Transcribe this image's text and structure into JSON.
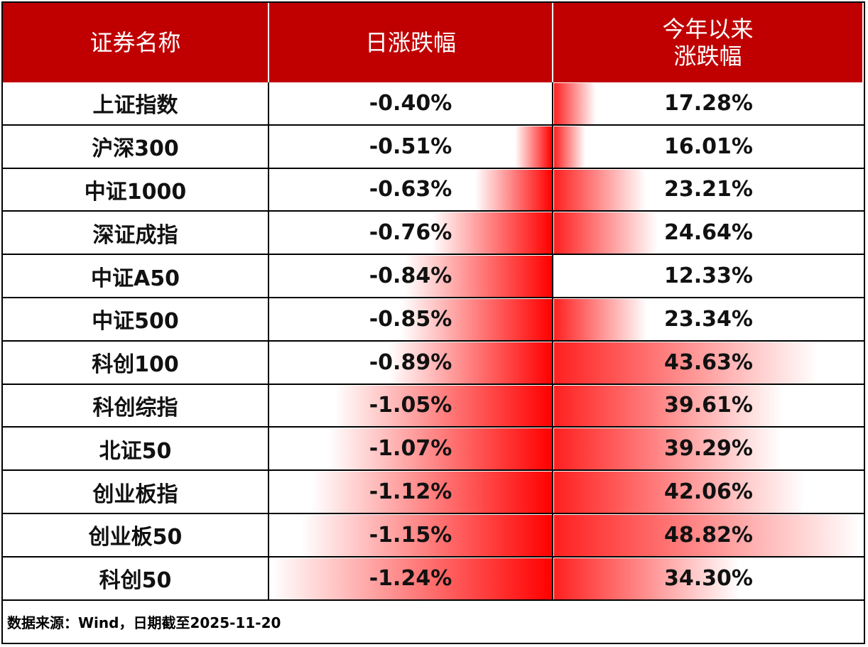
{
  "header": [
    [
      "证券名称"
    ],
    [
      "日涨跌幅"
    ],
    [
      "今年以来",
      "涨跌幅"
    ]
  ],
  "rows": [
    {
      "name": "上证指数",
      "daily": {
        "value": -0.4,
        "label": "-0.40%"
      },
      "ytd": {
        "value": 17.28,
        "label": "17.28%"
      }
    },
    {
      "name": "沪深300",
      "daily": {
        "value": -0.51,
        "label": "-0.51%"
      },
      "ytd": {
        "value": 16.01,
        "label": "16.01%"
      }
    },
    {
      "name": "中证1000",
      "daily": {
        "value": -0.63,
        "label": "-0.63%"
      },
      "ytd": {
        "value": 23.21,
        "label": "23.21%"
      }
    },
    {
      "name": "深证成指",
      "daily": {
        "value": -0.76,
        "label": "-0.76%"
      },
      "ytd": {
        "value": 24.64,
        "label": "24.64%"
      }
    },
    {
      "name": "中证A50",
      "daily": {
        "value": -0.84,
        "label": "-0.84%"
      },
      "ytd": {
        "value": 12.33,
        "label": "12.33%"
      }
    },
    {
      "name": "中证500",
      "daily": {
        "value": -0.85,
        "label": "-0.85%"
      },
      "ytd": {
        "value": 23.34,
        "label": "23.34%"
      }
    },
    {
      "name": "科创100",
      "daily": {
        "value": -0.89,
        "label": "-0.89%"
      },
      "ytd": {
        "value": 43.63,
        "label": "43.63%"
      }
    },
    {
      "name": "科创综指",
      "daily": {
        "value": -1.05,
        "label": "-1.05%"
      },
      "ytd": {
        "value": 39.61,
        "label": "39.61%"
      }
    },
    {
      "name": "北证50",
      "daily": {
        "value": -1.07,
        "label": "-1.07%"
      },
      "ytd": {
        "value": 39.29,
        "label": "39.29%"
      }
    },
    {
      "name": "创业板指",
      "daily": {
        "value": -1.12,
        "label": "-1.12%"
      },
      "ytd": {
        "value": 42.06,
        "label": "42.06%"
      }
    },
    {
      "name": "创业板50",
      "daily": {
        "value": -1.15,
        "label": "-1.15%"
      },
      "ytd": {
        "value": 48.82,
        "label": "48.82%"
      }
    },
    {
      "name": "科创50",
      "daily": {
        "value": -1.24,
        "label": "-1.24%"
      },
      "ytd": {
        "value": 34.3,
        "label": "34.30%"
      }
    }
  ],
  "footer": "数据来源：Wind，日期截至2025-11-20"
}
